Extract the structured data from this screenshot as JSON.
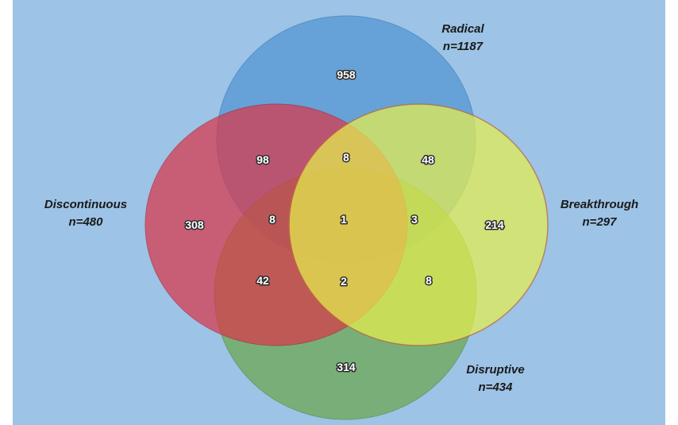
{
  "colors": {
    "background": "#9dc3e6",
    "radical": "#5b9bd5",
    "discontinuous": "#d9384a",
    "breakthrough": "#e6ef4f",
    "disruptive": "#6aa84f"
  },
  "sets": {
    "radical": {
      "name": "Radical",
      "n_label": "n=1187"
    },
    "discontinuous": {
      "name": "Discontinuous",
      "n_label": "n=480"
    },
    "breakthrough": {
      "name": "Breakthrough",
      "n_label": "n=297"
    },
    "disruptive": {
      "name": "Disruptive",
      "n_label": "n=434"
    }
  },
  "regions": {
    "radical_only": "958",
    "discontinuous_only": "308",
    "breakthrough_only": "214",
    "disruptive_only": "314",
    "radical_discontinuous": "98",
    "radical_breakthrough": "48",
    "discontinuous_disruptive": "42",
    "breakthrough_disruptive": "8",
    "radical_discontinuous_breakthrough": "8",
    "radical_discontinuous_disruptive": "8",
    "radical_breakthrough_disruptive": "3",
    "discontinuous_breakthrough_disruptive": "2",
    "all_four": "1"
  }
}
